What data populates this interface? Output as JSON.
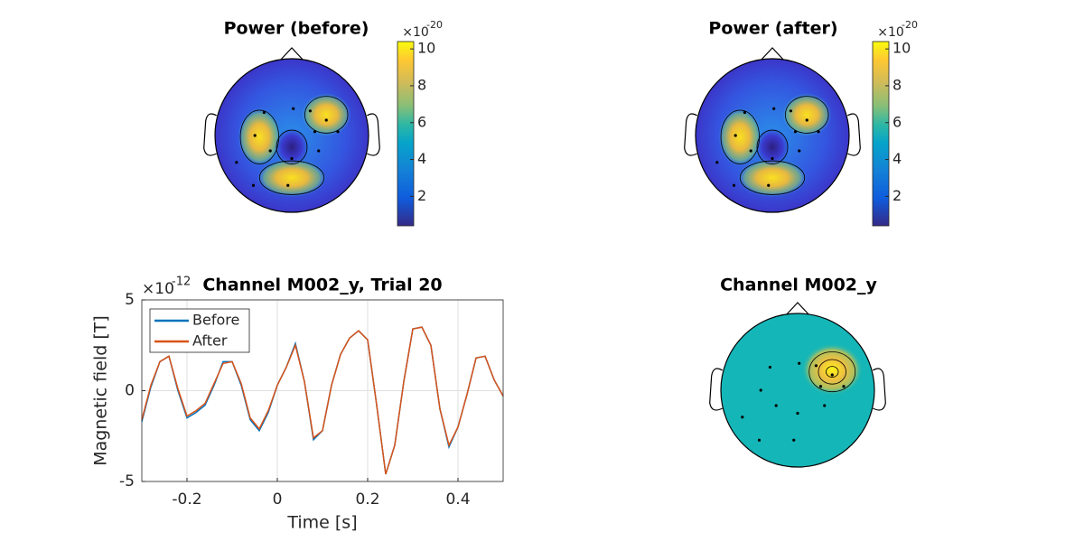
{
  "chart_data": [
    {
      "type": "topoplot",
      "title": "Power (before)",
      "colorbar": {
        "lim": [
          0.4,
          10.4
        ],
        "ticks": [
          2,
          4,
          6,
          8,
          10
        ],
        "scale_label": "×10",
        "scale_exponent": "-20"
      }
    },
    {
      "type": "topoplot",
      "title": "Power (after)",
      "colorbar": {
        "lim": [
          0.4,
          10.4
        ],
        "ticks": [
          2,
          4,
          6,
          8,
          10
        ],
        "scale_label": "×10",
        "scale_exponent": "-20"
      }
    },
    {
      "type": "line",
      "title": "Channel M002_y, Trial 20",
      "xlabel": "Time [s]",
      "ylabel": "Magnetic field [T]",
      "scale_label": "×10",
      "scale_exponent": "-12",
      "xlim": [
        -0.3,
        0.5
      ],
      "xticks": [
        -0.2,
        0,
        0.2,
        0.4
      ],
      "ylim": [
        -5,
        5
      ],
      "yticks": [
        -5,
        0,
        5
      ],
      "grid": true,
      "legend": "north-west",
      "x": [
        -0.3,
        -0.28,
        -0.26,
        -0.24,
        -0.22,
        -0.2,
        -0.18,
        -0.16,
        -0.14,
        -0.12,
        -0.1,
        -0.08,
        -0.06,
        -0.04,
        -0.02,
        0,
        0.02,
        0.04,
        0.06,
        0.08,
        0.1,
        0.12,
        0.14,
        0.16,
        0.18,
        0.2,
        0.22,
        0.24,
        0.26,
        0.28,
        0.3,
        0.32,
        0.34,
        0.36,
        0.38,
        0.4,
        0.42,
        0.44,
        0.46,
        0.48,
        0.5
      ],
      "series": [
        {
          "name": "Before",
          "color": "#0072bd",
          "values": [
            -1.7,
            0.2,
            1.6,
            1.9,
            0.0,
            -1.5,
            -1.2,
            -0.8,
            0.3,
            1.6,
            1.6,
            0.3,
            -1.6,
            -2.2,
            -1.2,
            0.3,
            1.3,
            2.6,
            0.5,
            -2.7,
            -2.2,
            0.3,
            2.0,
            2.9,
            3.3,
            2.8,
            -0.8,
            -4.6,
            -3.0,
            0.5,
            3.4,
            3.5,
            2.5,
            -1.0,
            -3.1,
            -2.0,
            -0.2,
            1.8,
            1.9,
            0.6,
            -0.3
          ]
        },
        {
          "name": "After",
          "color": "#d95319",
          "values": [
            -1.6,
            0.3,
            1.6,
            1.9,
            0.1,
            -1.4,
            -1.1,
            -0.7,
            0.4,
            1.5,
            1.6,
            0.4,
            -1.5,
            -2.1,
            -1.1,
            0.3,
            1.3,
            2.5,
            0.5,
            -2.6,
            -2.2,
            0.3,
            2.0,
            2.9,
            3.3,
            2.8,
            -0.8,
            -4.6,
            -3.0,
            0.5,
            3.4,
            3.5,
            2.5,
            -1.0,
            -3.0,
            -2.0,
            -0.2,
            1.8,
            1.9,
            0.6,
            -0.3
          ]
        }
      ]
    },
    {
      "type": "topoplot",
      "title": "Channel M002_y"
    }
  ]
}
